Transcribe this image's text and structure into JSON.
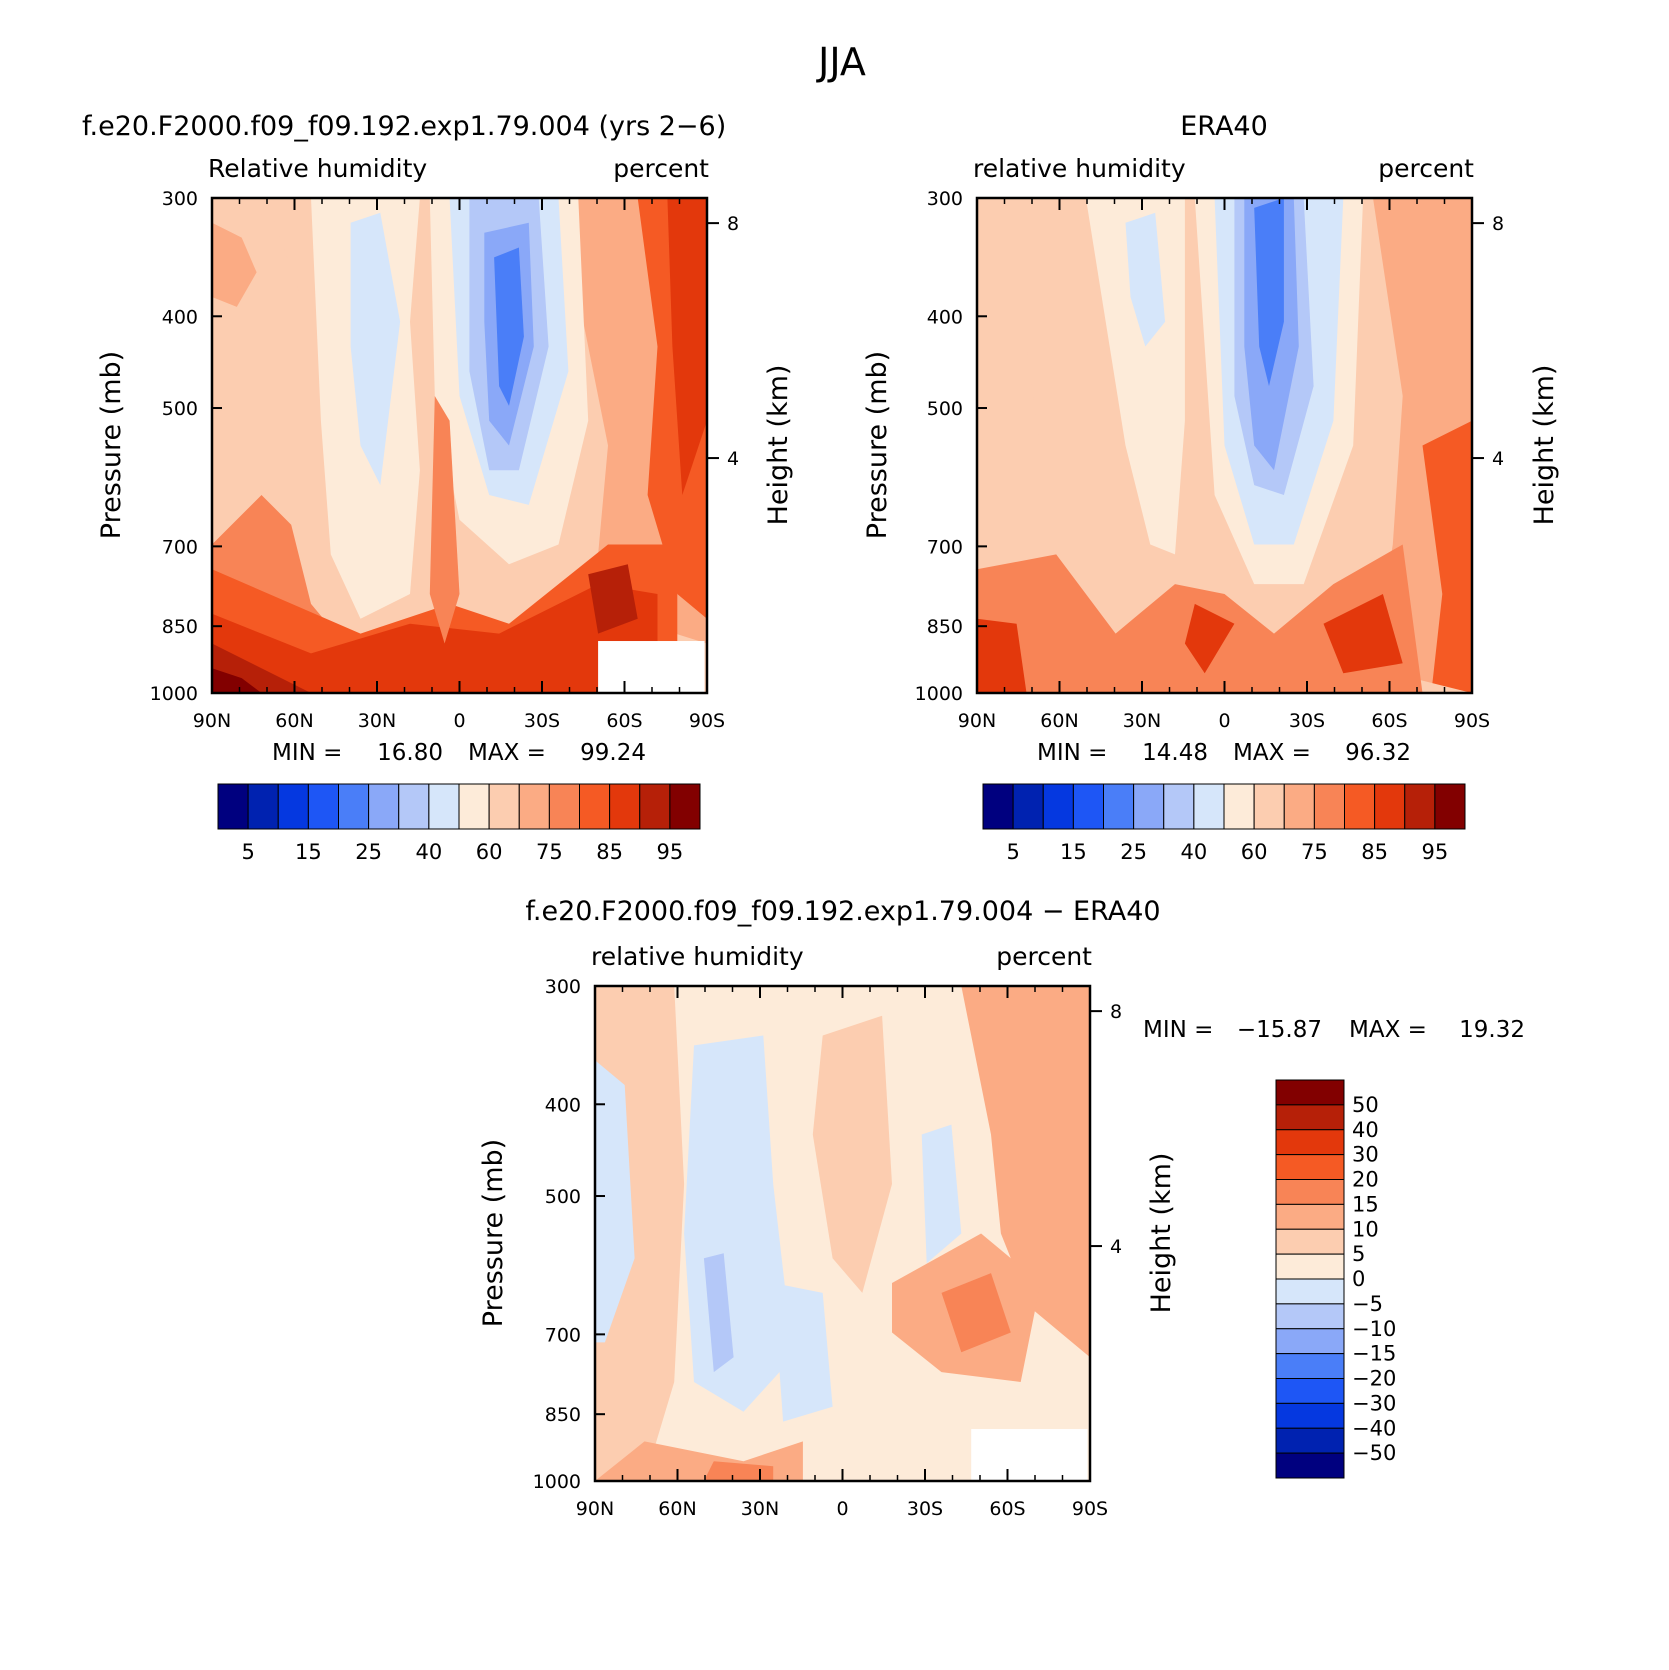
{
  "page_title": "JJA",
  "chart_data": [
    {
      "type": "heatmap",
      "title": "f.e20.F2000.f09_f09.192.exp1.79.004 (yrs 2−6)",
      "left_label": "Relative humidity",
      "right_label": "percent",
      "ylabel": "Pressure (mb)",
      "ylabel2": "Height (km)",
      "x_ticks": [
        "90N",
        "60N",
        "30N",
        "0",
        "30S",
        "60S",
        "90S"
      ],
      "y_ticks": [
        "300",
        "400",
        "500",
        "700",
        "850",
        "1000"
      ],
      "y2_ticks": [
        "8",
        "4"
      ],
      "ylim": [
        1000,
        300
      ],
      "log_scale_y": true,
      "stats": {
        "min_label": "MIN =",
        "min": "16.80",
        "max_label": "MAX =",
        "max": "99.24"
      },
      "colorbar": {
        "orientation": "horizontal",
        "labels": [
          "5",
          "15",
          "25",
          "40",
          "60",
          "75",
          "85",
          "95"
        ],
        "colors": [
          "#00007f",
          "#0022b0",
          "#0538e0",
          "#1e56f5",
          "#4a7ef8",
          "#8aa8f8",
          "#b4c8f8",
          "#d6e6fa",
          "#fdebd9",
          "#fccdb0",
          "#fbab84",
          "#f88456",
          "#f55a24",
          "#e3380c",
          "#b62008",
          "#820000"
        ]
      },
      "fields": [
        {
          "name": "bg",
          "level": "60"
        },
        {
          "name": "mid-n",
          "level": "65"
        },
        {
          "name": "lat-n",
          "level": "75"
        },
        {
          "name": "pole-n",
          "level": "70"
        },
        {
          "name": "sub-n",
          "level": "50"
        },
        {
          "name": "sub-n2",
          "level": "45"
        },
        {
          "name": "south-70",
          "level": "70"
        },
        {
          "name": "south-80",
          "level": "80"
        },
        {
          "name": "south-85",
          "level": "85"
        },
        {
          "name": "sub-s1",
          "level": "50"
        },
        {
          "name": "sub-s2",
          "level": "40"
        },
        {
          "name": "sub-s3",
          "level": "30"
        },
        {
          "name": "sub-s4",
          "level": "25"
        },
        {
          "name": "sub-s5",
          "level": "20"
        },
        {
          "name": "sfc-80",
          "level": "80"
        },
        {
          "name": "sfc-85",
          "level": "85"
        },
        {
          "name": "sfc-90",
          "level": "90"
        },
        {
          "name": "sfc-95",
          "level": "95"
        },
        {
          "name": "itcz",
          "level": "75"
        },
        {
          "name": "ant-90",
          "level": "90"
        }
      ]
    },
    {
      "type": "heatmap",
      "title": "ERA40",
      "left_label": "relative humidity",
      "right_label": "percent",
      "ylabel": "Pressure (mb)",
      "ylabel2": "Height (km)",
      "x_ticks": [
        "90N",
        "60N",
        "30N",
        "0",
        "30S",
        "60S",
        "90S"
      ],
      "y_ticks": [
        "300",
        "400",
        "500",
        "700",
        "850",
        "1000"
      ],
      "y2_ticks": [
        "8",
        "4"
      ],
      "ylim": [
        1000,
        300
      ],
      "log_scale_y": true,
      "stats": {
        "min_label": "MIN =",
        "min": "14.48",
        "max_label": "MAX =",
        "max": "96.32"
      },
      "colorbar": {
        "orientation": "horizontal",
        "labels": [
          "5",
          "15",
          "25",
          "40",
          "60",
          "75",
          "85",
          "95"
        ],
        "colors": [
          "#00007f",
          "#0022b0",
          "#0538e0",
          "#1e56f5",
          "#4a7ef8",
          "#8aa8f8",
          "#b4c8f8",
          "#d6e6fa",
          "#fdebd9",
          "#fccdb0",
          "#fbab84",
          "#f88456",
          "#f55a24",
          "#e3380c",
          "#b62008",
          "#820000"
        ]
      },
      "fields": [
        {
          "name": "bg",
          "level": "65"
        },
        {
          "name": "mid-n",
          "level": "60"
        },
        {
          "name": "sub-n",
          "level": "50"
        },
        {
          "name": "sub-n2",
          "level": "45"
        },
        {
          "name": "south-70",
          "level": "70"
        },
        {
          "name": "south-80",
          "level": "80"
        },
        {
          "name": "sub-s1",
          "level": "50"
        },
        {
          "name": "sub-s2",
          "level": "40"
        },
        {
          "name": "sub-s3",
          "level": "30"
        },
        {
          "name": "sub-s4",
          "level": "25"
        },
        {
          "name": "sub-s5",
          "level": "20"
        },
        {
          "name": "sfc-75",
          "level": "75"
        },
        {
          "name": "sfc-85",
          "level": "85"
        },
        {
          "name": "itcz",
          "level": "85"
        },
        {
          "name": "ant-85",
          "level": "85"
        }
      ]
    },
    {
      "type": "heatmap",
      "title": "f.e20.F2000.f09_f09.192.exp1.79.004 − ERA40",
      "left_label": "relative humidity",
      "right_label": "percent",
      "ylabel": "Pressure (mb)",
      "ylabel2": "Height (km)",
      "x_ticks": [
        "90N",
        "60N",
        "30N",
        "0",
        "30S",
        "60S",
        "90S"
      ],
      "y_ticks": [
        "300",
        "400",
        "500",
        "700",
        "850",
        "1000"
      ],
      "y2_ticks": [
        "8",
        "4"
      ],
      "ylim": [
        1000,
        300
      ],
      "log_scale_y": true,
      "stats": {
        "min_label": "MIN =",
        "min": "−15.87",
        "max_label": "MAX =",
        "max": "19.32"
      },
      "colorbar": {
        "orientation": "vertical",
        "labels": [
          "50",
          "40",
          "30",
          "20",
          "15",
          "10",
          "5",
          "0",
          "−5",
          "−10",
          "−15",
          "−20",
          "−30",
          "−40",
          "−50"
        ],
        "colors": [
          "#820000",
          "#b62008",
          "#e3380c",
          "#f55a24",
          "#f88456",
          "#fbab84",
          "#fccdb0",
          "#fdebd9",
          "#d6e6fa",
          "#b4c8f8",
          "#8aa8f8",
          "#4a7ef8",
          "#1e56f5",
          "#0538e0",
          "#0022b0",
          "#00007f"
        ]
      },
      "fields": [
        {
          "name": "bg",
          "level": "2.5"
        },
        {
          "name": "n-pos",
          "level": "7.5"
        },
        {
          "name": "s-pos",
          "level": "12"
        },
        {
          "name": "neg-1",
          "level": "-2.5"
        },
        {
          "name": "neg-2",
          "level": "-2.5"
        },
        {
          "name": "neg-3",
          "level": "-2.5"
        },
        {
          "name": "neg-4",
          "level": "-2.5"
        },
        {
          "name": "neg-5",
          "level": "-7.5"
        },
        {
          "name": "pos-eq",
          "level": "7.5"
        },
        {
          "name": "pos-s",
          "level": "12"
        },
        {
          "name": "pos-s2",
          "level": "17"
        },
        {
          "name": "pos-sfc",
          "level": "12"
        },
        {
          "name": "pos-sfc2",
          "level": "17"
        }
      ]
    }
  ]
}
